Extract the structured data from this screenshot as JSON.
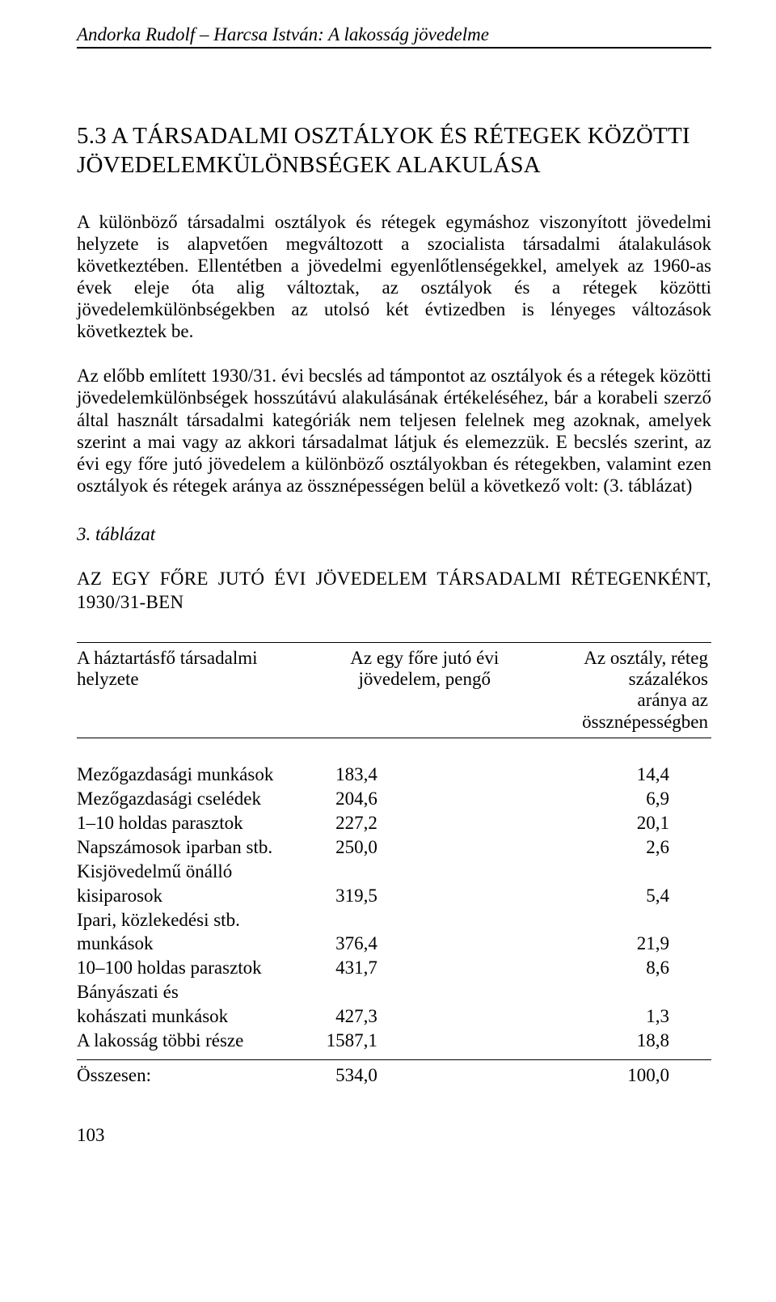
{
  "running_head": "Andorka Rudolf – Harcsa István: A lakosság jövedelme",
  "section_title": "5.3 A TÁRSADALMI OSZTÁLYOK ÉS RÉTEGEK KÖZÖTTI JÖVEDELEMKÜLÖNBSÉGEK ALAKULÁSA",
  "paragraph1": "A különböző társadalmi osztályok és rétegek egymáshoz viszonyított jövedelmi helyzete is alapvetően megváltozott a szocialista társadalmi átalakulások következtében. Ellentétben a jövedelmi egyenlőtlenségekkel, amelyek az 1960-as évek eleje óta alig változtak, az osztályok és a rétegek közötti jövedelemkülönbségekben az utolsó két évtizedben is lényeges változások következtek be.",
  "paragraph2": "Az előbb említett 1930/31. évi becslés ad támpontot az osztályok és a rétegek közötti jövedelemkülönbségek hosszútávú alakulásának értékeléséhez, bár a korabeli szerző által használt társadalmi kategóriák nem teljesen felelnek meg azoknak, amelyek szerint a mai vagy az akkori társadalmat látjuk és elemezzük. E becslés szerint, az évi egy főre jutó jövedelem a különböző osztályokban és rétegekben, valamint ezen osztályok és rétegek aránya az össznépességen belül a következő volt: (3. táblázat)",
  "table_label": "3. táblázat",
  "table_title": "AZ EGY FŐRE JUTÓ ÉVI JÖVEDELEM TÁRSADALMI RÉTEGENKÉNT, 1930/31-BEN",
  "table": {
    "type": "table",
    "columns": [
      {
        "label_line1": "A háztartásfő társadalmi",
        "label_line2": "helyzete",
        "align": "left",
        "width_pct": 40
      },
      {
        "label_line1": "Az egy főre jutó évi",
        "label_line2": "jövedelem, pengő",
        "align": "center",
        "width_pct": 30
      },
      {
        "label_line1": "Az osztály, réteg százalékos",
        "label_line2": "aránya az össznépességben",
        "align": "right",
        "width_pct": 30
      }
    ],
    "rows": [
      {
        "lines": [
          "Mezőgazdasági munkások"
        ],
        "v1": "183,4",
        "v2": "14,4"
      },
      {
        "lines": [
          "Mezőgazdasági cselédek"
        ],
        "v1": "204,6",
        "v2": "6,9"
      },
      {
        "lines": [
          "1–10 holdas parasztok"
        ],
        "v1": "227,2",
        "v2": "20,1"
      },
      {
        "lines": [
          "Napszámosok iparban stb."
        ],
        "v1": "250,0",
        "v2": "2,6"
      },
      {
        "lines": [
          "Kisjövedelmű önálló",
          "kisiparosok"
        ],
        "v1": "319,5",
        "v2": "5,4"
      },
      {
        "lines": [
          "Ipari, közlekedési stb.",
          "munkások"
        ],
        "v1": "376,4",
        "v2": "21,9"
      },
      {
        "lines": [
          "10–100 holdas parasztok"
        ],
        "v1": "431,7",
        "v2": "8,6"
      },
      {
        "lines": [
          "Bányászati és",
          "kohászati munkások"
        ],
        "v1": "427,3",
        "v2": "1,3"
      },
      {
        "lines": [
          "A lakosság többi része"
        ],
        "v1": "1587,1",
        "v2": "18,8"
      }
    ],
    "total": {
      "label": "Összesen:",
      "v1": "534,0",
      "v2": "100,0"
    },
    "border_color": "#000000",
    "text_color": "#000000",
    "background_color": "#ffffff"
  },
  "page_number": "103"
}
